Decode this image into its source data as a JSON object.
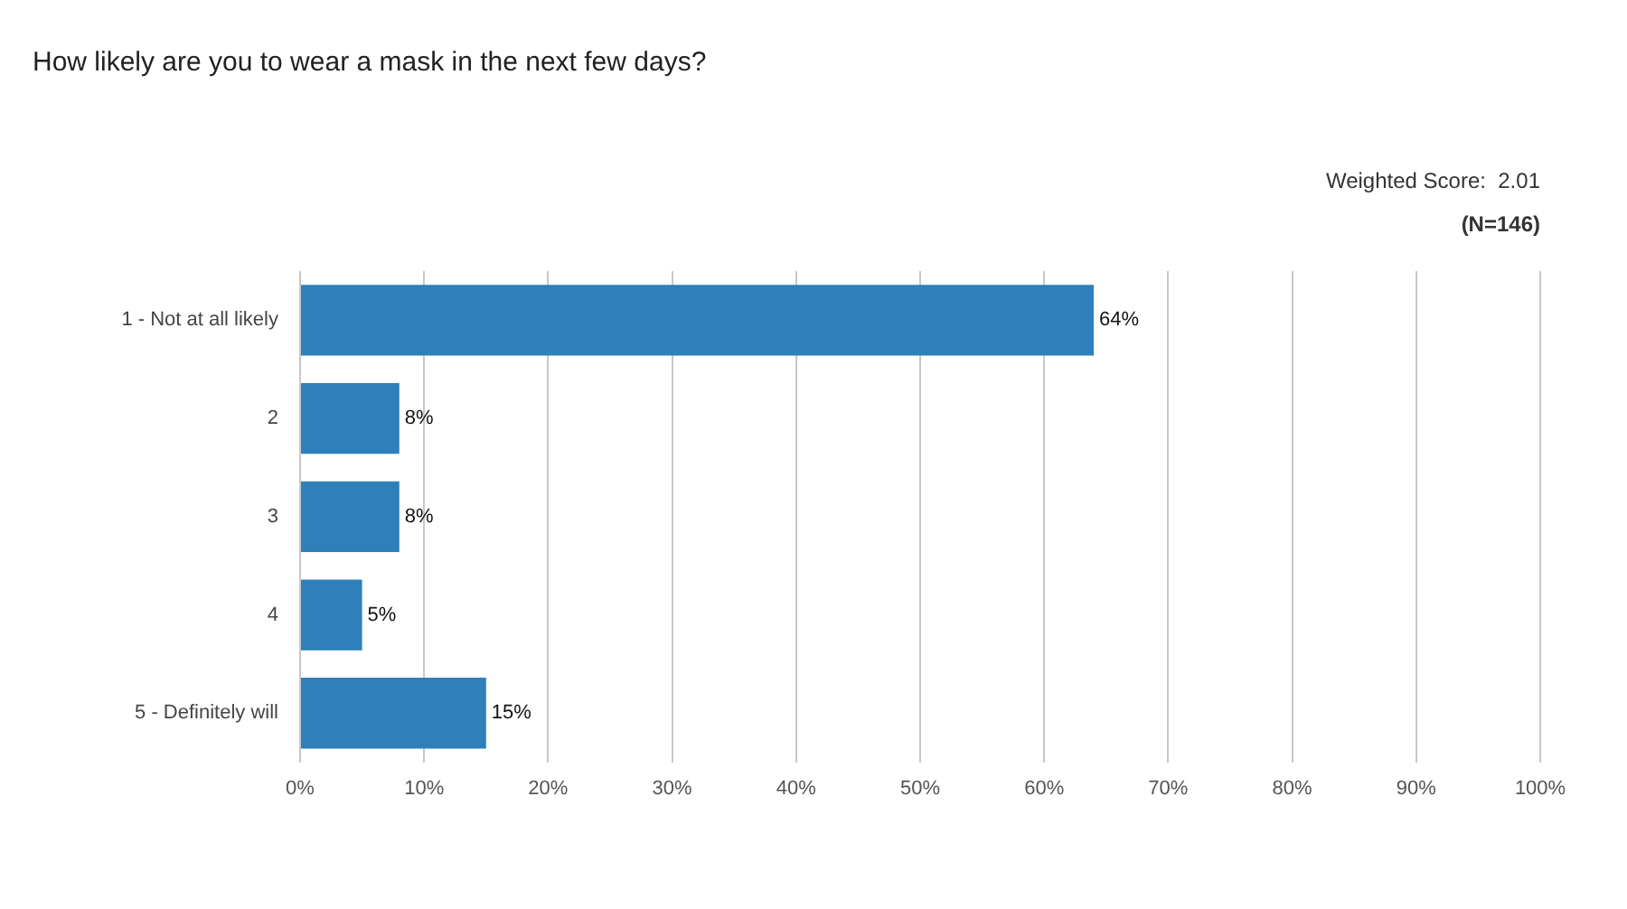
{
  "chart_data": {
    "type": "bar",
    "orientation": "horizontal",
    "title": "How likely are you to wear a mask in the next few days?",
    "categories": [
      "1 - Not at all likely",
      "2",
      "3",
      "4",
      "5 - Definitely will"
    ],
    "values": [
      64,
      8,
      8,
      5,
      15
    ],
    "value_labels": [
      "64%",
      "8%",
      "8%",
      "5%",
      "15%"
    ],
    "color": "#2e7fba",
    "xlim": [
      0,
      100
    ],
    "xticks": [
      {
        "value": 0,
        "label": "0%"
      },
      {
        "value": 10,
        "label": "10%"
      },
      {
        "value": 20,
        "label": "20%"
      },
      {
        "value": 30,
        "label": "30%"
      },
      {
        "value": 40,
        "label": "40%"
      },
      {
        "value": 50,
        "label": "50%"
      },
      {
        "value": 60,
        "label": "60%"
      },
      {
        "value": 70,
        "label": "70%"
      },
      {
        "value": 80,
        "label": "80%"
      },
      {
        "value": 90,
        "label": "90%"
      },
      {
        "value": 100,
        "label": "100%"
      }
    ],
    "grid": "x",
    "annotations": [
      "Weighted Score:  2.01",
      "(N=146)"
    ]
  }
}
